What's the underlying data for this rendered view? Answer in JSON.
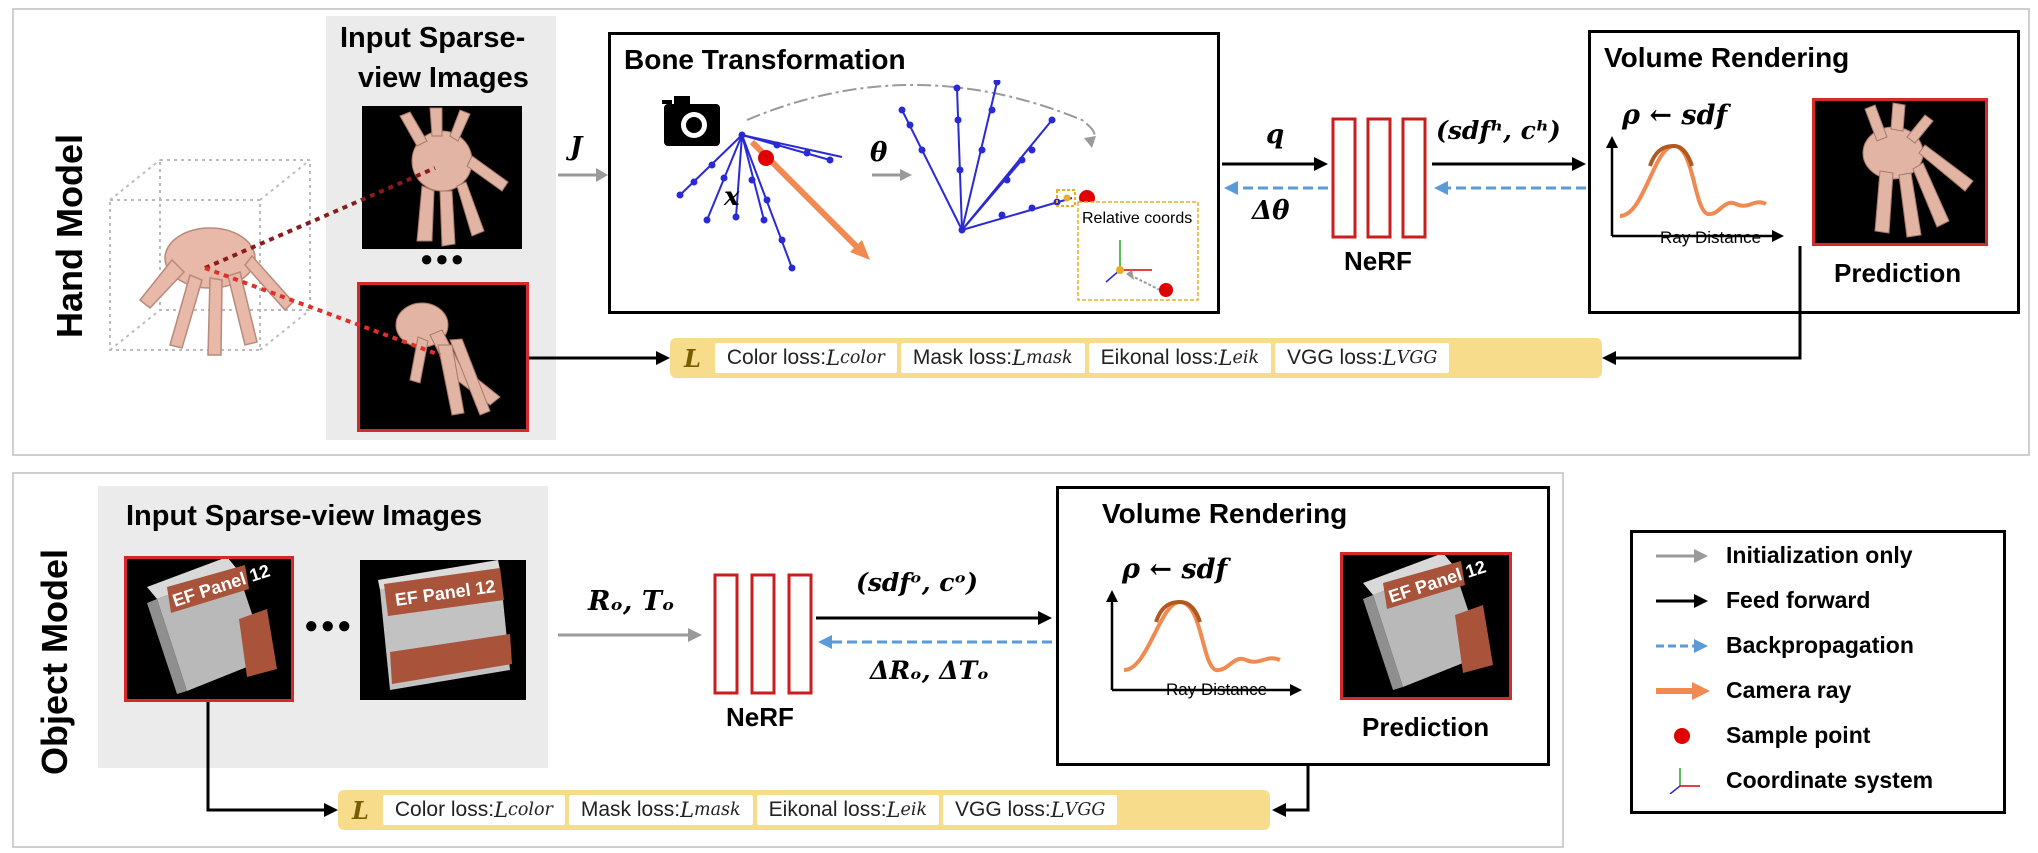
{
  "hand": {
    "side_label": "Hand Model",
    "input_title_line1": "Input Sparse-",
    "input_title_line2": "view Images",
    "ellipsis": "●●●",
    "arrow_J": "J",
    "bone_title": "Bone Transformation",
    "theta": "θ",
    "x_label": "x",
    "relative_coords": "Relative coords",
    "q_label": "q",
    "dtheta_label": "Δθ",
    "nerf_label": "NeRF",
    "output_label": "(sdfʰ, cʰ)",
    "vr_title": "Volume Rendering",
    "rho_label": "ρ ← sdf",
    "ray_distance": "Ray Distance",
    "prediction": "Prediction"
  },
  "object": {
    "side_label": "Object Model",
    "input_title": "Input Sparse-view Images",
    "ellipsis": "●●●",
    "arrow_RT": "Rₒ, Tₒ",
    "nerf_label": "NeRF",
    "output_label": "(sdfᵒ, cᵒ)",
    "delta_label": "ΔRₒ, ΔTₒ",
    "vr_title": "Volume Rendering",
    "rho_label": "ρ ← sdf",
    "ray_distance": "Ray Distance",
    "prediction": "Prediction",
    "box_text": "EF Panel 12"
  },
  "loss": {
    "L": "L",
    "items": [
      {
        "text": "Color loss: ",
        "sym": "L",
        "sub": "color"
      },
      {
        "text": "Mask loss: ",
        "sym": "L",
        "sub": "mask"
      },
      {
        "text": "Eikonal loss: ",
        "sym": "L",
        "sub": "eik"
      },
      {
        "text": "VGG loss: ",
        "sym": "L",
        "sub": "VGG"
      }
    ]
  },
  "legend": [
    {
      "label": "Initialization only",
      "icon": "gray-arrow"
    },
    {
      "label": "Feed forward",
      "icon": "black-arrow"
    },
    {
      "label": "Backpropagation",
      "icon": "dashed-blue-arrow"
    },
    {
      "label": "Camera ray",
      "icon": "orange-arrow"
    },
    {
      "label": "Sample point",
      "icon": "red-dot"
    },
    {
      "label": "Coordinate system",
      "icon": "axes"
    }
  ],
  "colors": {
    "red": "#d42a2a",
    "orange": "#f08a50",
    "blue": "#2a2ad4",
    "dashed_blue": "#5a9ad6",
    "gray": "#9a9a9a",
    "loss_bg": "#f7dc8c",
    "panel_border": "#cfcfcf",
    "gray_bg": "#ebebeb"
  }
}
